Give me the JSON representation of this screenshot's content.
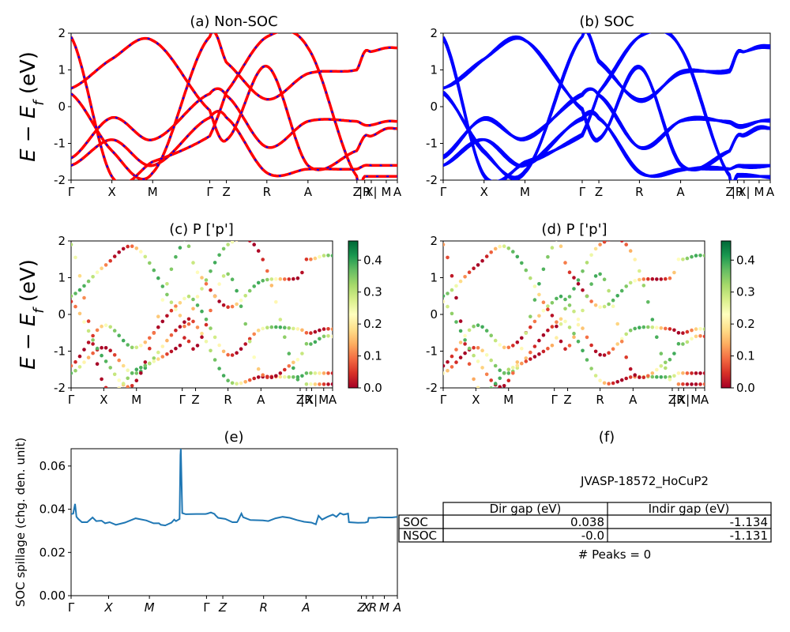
{
  "colors": {
    "nonsoc_line": "#ff0000",
    "nonsoc_dash": "#0000ff",
    "soc_line": "#0000ff",
    "spillage_line": "#1f77b4",
    "cmap": [
      "#a50026",
      "#d73027",
      "#f46d43",
      "#fdae61",
      "#fee08b",
      "#ffffbf",
      "#d9ef8b",
      "#a6d96a",
      "#66bd63",
      "#1a9850",
      "#006837"
    ]
  },
  "kpath": [
    "Γ",
    "X",
    "M",
    "Γ",
    "Z",
    "R",
    "A",
    "Z",
    "|R",
    "X|",
    "M",
    "A"
  ],
  "ylabel_energy": "E − E_f (eV)",
  "ylabel_energy_main": "E − E",
  "ylabel_energy_sub": "f",
  "ylabel_energy_unit": " (eV)",
  "panels": {
    "a": {
      "title": "(a) Non-SOC"
    },
    "b": {
      "title": "(b) SOC"
    },
    "c": {
      "title": "(c)  P ['p']"
    },
    "d": {
      "title": "(d) P ['p']"
    },
    "e": {
      "title": "(e)",
      "ylabel": "SOC spillage (chg. den. unit)"
    },
    "f": {
      "title": "(f)",
      "material": "JVASP-18572_HoCuP2",
      "table": {
        "headers": [
          "Dir gap (eV)",
          "Indir gap (eV)"
        ],
        "rows": [
          {
            "label": "SOC",
            "dir": "0.038",
            "indir": "-1.134"
          },
          {
            "label": "NSOC",
            "dir": "-0.0",
            "indir": "-1.131"
          }
        ]
      },
      "peaks": "# Peaks = 0"
    }
  },
  "chart_data": [
    {
      "id": "a",
      "type": "line",
      "title": "(a) Non-SOC",
      "ylabel": "E − E_f (eV)",
      "ylim": [
        -2,
        2
      ],
      "yticks": [
        -2,
        -1,
        0,
        1,
        2
      ],
      "xticklabels": [
        "Γ",
        "X",
        "M",
        "Γ",
        "Z",
        "R",
        "A",
        "Z",
        "|R",
        "X|",
        "M",
        "A"
      ],
      "bands_visible_at_gamma": [
        -1.6,
        -1.4,
        0.35,
        0.5,
        1.9
      ],
      "approx_band_values_at_kpoints": [
        [
          -1.6,
          -0.9,
          -1.6,
          -0.3,
          -0.3,
          -1.8,
          -1.7,
          -1.7,
          -1.6,
          -1.6,
          -1.6,
          -1.6
        ],
        [
          -1.4,
          -0.3,
          -0.9,
          0.35,
          0.3,
          -1.1,
          -0.4,
          -0.4,
          -0.5,
          -0.5,
          -0.4,
          -0.4
        ],
        [
          0.35,
          -1.2,
          -1.8,
          1.9,
          1.2,
          0.2,
          0.9,
          1.0,
          1.5,
          1.5,
          1.6,
          1.6
        ],
        [
          0.5,
          1.3,
          1.8,
          -0.1,
          -0.9,
          1.1,
          -1.6,
          -1.2,
          -0.8,
          -0.8,
          -0.6,
          -0.6
        ],
        [
          1.9,
          -1.9,
          -1.5,
          -0.8,
          0.4,
          1.9,
          1.6,
          -1.9,
          -1.9,
          -1.9,
          -1.9,
          -1.9
        ]
      ]
    },
    {
      "id": "b",
      "type": "line",
      "title": "(b) SOC",
      "ylabel": "",
      "ylim": [
        -2,
        2
      ],
      "yticks": [
        -2,
        -1,
        0,
        1,
        2
      ],
      "xticklabels": [
        "Γ",
        "X",
        "M",
        "Γ",
        "Z",
        "R",
        "A",
        "Z",
        "|R",
        "X|",
        "M",
        "A"
      ],
      "note": "same band structure as (a), spin-orbit split"
    },
    {
      "id": "c",
      "type": "scatter",
      "title": "(c)  P ['p']",
      "ylim": [
        -2,
        2
      ],
      "yticks": [
        -2,
        -1,
        0,
        1,
        2
      ],
      "colorbar": {
        "min": 0.0,
        "max": 0.46,
        "ticks": [
          0.0,
          0.1,
          0.2,
          0.3,
          0.4
        ]
      },
      "xticklabels": [
        "Γ",
        "X",
        "M",
        "Γ",
        "Z",
        "R",
        "A",
        "Z",
        "|R",
        "X|",
        "M",
        "A"
      ]
    },
    {
      "id": "d",
      "type": "scatter",
      "title": "(d) P ['p']",
      "ylim": [
        -2,
        2
      ],
      "yticks": [
        -2,
        -1,
        0,
        1,
        2
      ],
      "colorbar": {
        "min": 0.0,
        "max": 0.46,
        "ticks": [
          0.0,
          0.1,
          0.2,
          0.3,
          0.4
        ]
      },
      "xticklabels": [
        "Γ",
        "X",
        "M",
        "Γ",
        "Z",
        "R",
        "A",
        "Z",
        "|R",
        "X|",
        "M",
        "A"
      ]
    },
    {
      "id": "e",
      "type": "line",
      "title": "(e)",
      "ylabel": "SOC spillage (chg. den. unit)",
      "ylim": [
        0.0,
        0.068
      ],
      "yticks": [
        0.0,
        0.02,
        0.04,
        0.06
      ],
      "xticklabels": [
        "Γ",
        "X",
        "M",
        "Γ",
        "Z",
        "R",
        "A",
        "Z",
        "X",
        "R",
        "M",
        "A"
      ],
      "series": [
        {
          "values": [
            [
              0.0,
              0.0378
            ],
            [
              0.012,
              0.038
            ],
            [
              0.022,
              0.0425
            ],
            [
              0.03,
              0.0365
            ],
            [
              0.04,
              0.0355
            ],
            [
              0.06,
              0.034
            ],
            [
              0.09,
              0.034
            ],
            [
              0.12,
              0.0362
            ],
            [
              0.14,
              0.0345
            ],
            [
              0.17,
              0.0347
            ],
            [
              0.19,
              0.0335
            ],
            [
              0.215,
              0.034
            ],
            [
              0.25,
              0.0328
            ],
            [
              0.3,
              0.0338
            ],
            [
              0.36,
              0.0358
            ],
            [
              0.42,
              0.0348
            ],
            [
              0.46,
              0.0335
            ],
            [
              0.49,
              0.0335
            ],
            [
              0.5,
              0.0328
            ],
            [
              0.525,
              0.0325
            ],
            [
              0.56,
              0.0338
            ],
            [
              0.575,
              0.0352
            ],
            [
              0.585,
              0.0345
            ],
            [
              0.595,
              0.035
            ],
            [
              0.605,
              0.0355
            ],
            [
              0.61,
              0.065
            ],
            [
              0.612,
              0.068
            ],
            [
              0.62,
              0.0382
            ],
            [
              0.64,
              0.0377
            ],
            [
              0.7,
              0.0378
            ],
            [
              0.75,
              0.0378
            ],
            [
              0.76,
              0.038
            ],
            [
              0.78,
              0.0385
            ],
            [
              0.8,
              0.0378
            ],
            [
              0.805,
              0.0372
            ],
            [
              0.82,
              0.036
            ],
            [
              0.86,
              0.0355
            ],
            [
              0.9,
              0.034
            ],
            [
              0.925,
              0.034
            ],
            [
              0.93,
              0.0345
            ],
            [
              0.95,
              0.038
            ],
            [
              0.96,
              0.0363
            ],
            [
              1.0,
              0.035
            ],
            [
              1.07,
              0.0348
            ],
            [
              1.1,
              0.0345
            ],
            [
              1.14,
              0.0358
            ],
            [
              1.18,
              0.0365
            ],
            [
              1.22,
              0.036
            ],
            [
              1.26,
              0.035
            ],
            [
              1.3,
              0.0342
            ],
            [
              1.34,
              0.0338
            ],
            [
              1.365,
              0.033
            ],
            [
              1.38,
              0.037
            ],
            [
              1.4,
              0.0352
            ],
            [
              1.43,
              0.0365
            ],
            [
              1.46,
              0.0375
            ],
            [
              1.48,
              0.0365
            ],
            [
              1.5,
              0.0382
            ],
            [
              1.52,
              0.0375
            ],
            [
              1.545,
              0.038
            ],
            [
              1.55,
              0.034
            ],
            [
              1.6,
              0.0337
            ],
            [
              1.64,
              0.0338
            ],
            [
              1.655,
              0.0342
            ],
            [
              1.66,
              0.036
            ],
            [
              1.7,
              0.036
            ],
            [
              1.72,
              0.0363
            ],
            [
              1.75,
              0.0362
            ],
            [
              1.79,
              0.0362
            ],
            [
              1.82,
              0.0365
            ]
          ]
        }
      ]
    },
    {
      "id": "f",
      "type": "table",
      "title": "(f)",
      "caption": "JVASP-18572_HoCuP2",
      "columns": [
        "",
        "Dir gap (eV)",
        "Indir gap (eV)"
      ],
      "rows": [
        [
          "SOC",
          "0.038",
          "-1.134"
        ],
        [
          "NSOC",
          "-0.0",
          "-1.131"
        ]
      ],
      "footer": "# Peaks = 0"
    }
  ]
}
